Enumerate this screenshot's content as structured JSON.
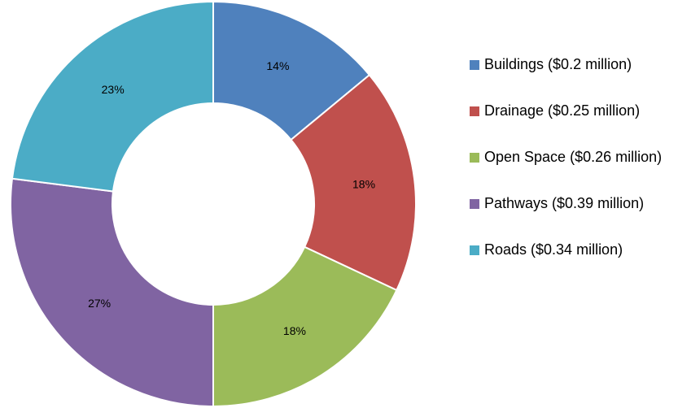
{
  "chart_data": {
    "type": "donut",
    "categories": [
      "Buildings ($0.2 million)",
      "Drainage ($0.25 million)",
      "Open Space ($0.26 million)",
      "Pathways ($0.39 million)",
      "Roads ($0.34 million)"
    ],
    "values": [
      14,
      18,
      18,
      27,
      23
    ],
    "value_labels": [
      "14%",
      "18%",
      "18%",
      "27%",
      "23%"
    ],
    "colors": [
      "#4f81bd",
      "#c0504d",
      "#9bbb59",
      "#8064a2",
      "#4bacc6"
    ],
    "legend": "right"
  }
}
